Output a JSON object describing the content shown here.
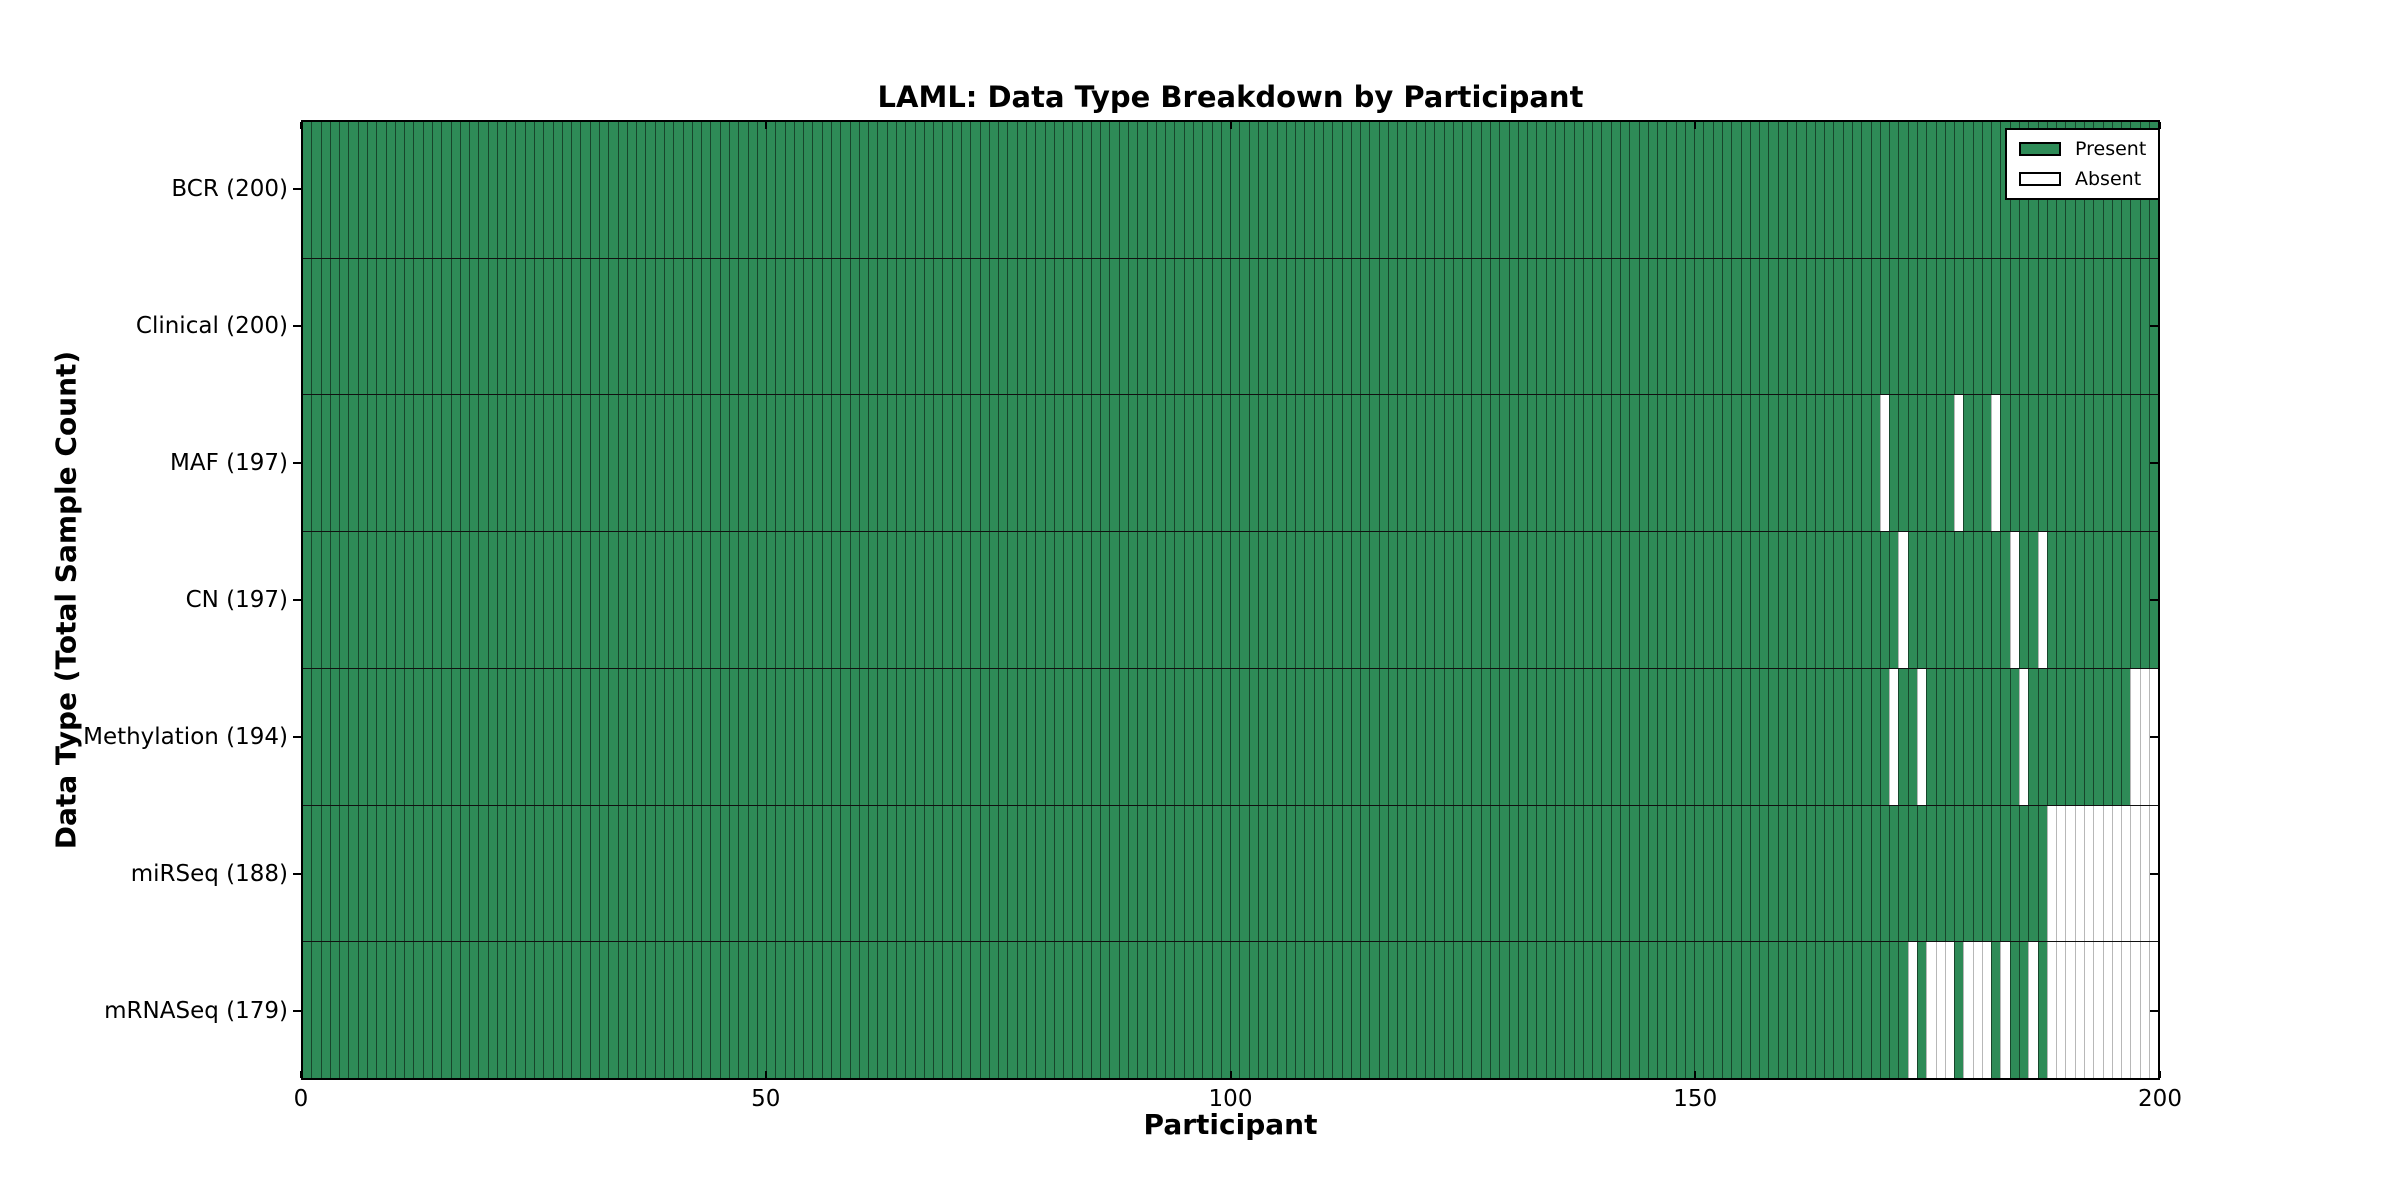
{
  "title": "LAML: Data Type Breakdown by Participant",
  "colors": {
    "present": "#2e8b57",
    "absent": "#ffffff",
    "axis": "#000000"
  },
  "chart_data": {
    "type": "heatmap",
    "title": "LAML: Data Type Breakdown by Participant",
    "xlabel": "Participant",
    "ylabel": "Data Type (Total Sample Count)",
    "x_range": [
      0,
      200
    ],
    "xticks": [
      0,
      50,
      100,
      150,
      200
    ],
    "n_participants": 200,
    "grid": false,
    "legend_position": "upper right",
    "legend": [
      {
        "label": "Present",
        "color": "#2e8b57"
      },
      {
        "label": "Absent",
        "color": "#ffffff"
      }
    ],
    "rows": [
      {
        "label": "BCR (200)",
        "name": "BCR",
        "total": 200,
        "absent_participants": []
      },
      {
        "label": "Clinical (200)",
        "name": "Clinical",
        "total": 200,
        "absent_participants": []
      },
      {
        "label": "MAF (197)",
        "name": "MAF",
        "total": 197,
        "absent_participants": [
          170,
          178,
          182
        ]
      },
      {
        "label": "CN (197)",
        "name": "CN",
        "total": 197,
        "absent_participants": [
          172,
          184,
          187
        ]
      },
      {
        "label": "Methylation (194)",
        "name": "Methylation",
        "total": 194,
        "absent_participants": [
          171,
          174,
          185,
          197,
          198,
          199
        ]
      },
      {
        "label": "miRSeq (188)",
        "name": "miRSeq",
        "total": 188,
        "absent_participants": [
          188,
          189,
          190,
          191,
          192,
          193,
          194,
          195,
          196,
          197,
          198,
          199
        ]
      },
      {
        "label": "mRNASeq (179)",
        "name": "mRNASeq",
        "total": 179,
        "absent_participants": [
          173,
          175,
          176,
          177,
          179,
          180,
          181,
          183,
          186,
          188,
          189,
          190,
          191,
          192,
          193,
          194,
          195,
          196,
          197,
          198,
          199
        ]
      }
    ]
  }
}
